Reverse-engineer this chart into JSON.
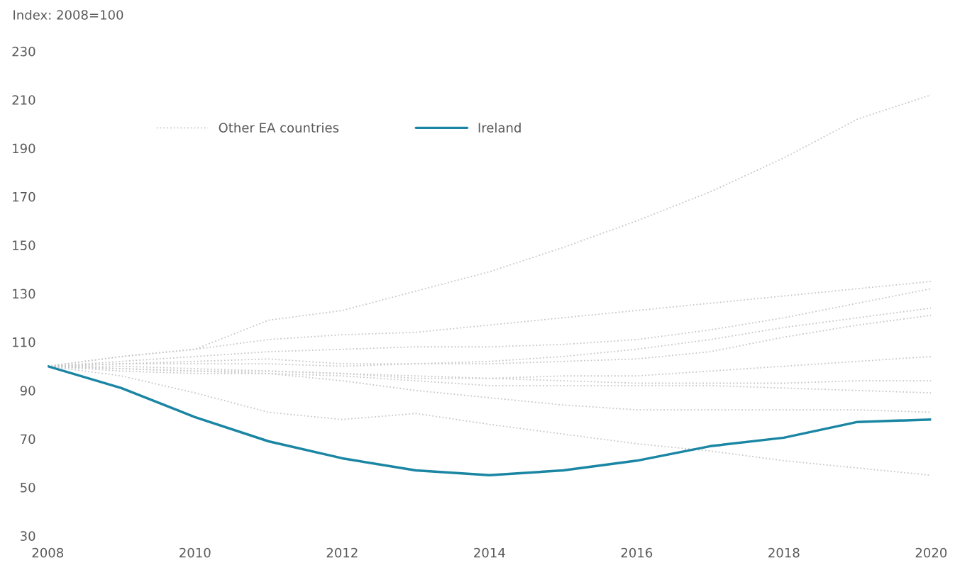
{
  "chart_data": {
    "type": "line",
    "ylabel": "Index: 2008=100",
    "x": [
      2008,
      2009,
      2010,
      2011,
      2012,
      2013,
      2014,
      2015,
      2016,
      2017,
      2018,
      2019,
      2020
    ],
    "series": [
      {
        "name": "Other EA countries",
        "color": "#c8c8c8",
        "line_style": "dotted",
        "values": [
          100,
          104,
          107,
          119,
          123,
          131,
          139,
          149,
          160,
          172,
          186,
          202,
          212
        ]
      },
      {
        "color": "#c8c8c8",
        "line_style": "dotted",
        "values": [
          100,
          104,
          107,
          111,
          113,
          114,
          117,
          120,
          123,
          126,
          129,
          132,
          135
        ]
      },
      {
        "color": "#c8c8c8",
        "line_style": "dotted",
        "values": [
          100,
          102,
          104,
          106,
          107,
          108,
          108,
          109,
          111,
          115,
          120,
          126,
          132
        ]
      },
      {
        "color": "#c8c8c8",
        "line_style": "dotted",
        "values": [
          100,
          101,
          102,
          103,
          101,
          101,
          102,
          104,
          107,
          111,
          116,
          120,
          124
        ]
      },
      {
        "color": "#c8c8c8",
        "line_style": "dotted",
        "values": [
          100,
          101,
          101,
          101,
          100,
          101,
          101,
          102,
          103,
          106,
          112,
          117,
          121
        ]
      },
      {
        "color": "#c8c8c8",
        "line_style": "dotted",
        "values": [
          100,
          99,
          98,
          98,
          97,
          96,
          95,
          96,
          96,
          98,
          100,
          102,
          104
        ]
      },
      {
        "color": "#c8c8c8",
        "line_style": "dotted",
        "values": [
          100,
          100,
          99,
          98,
          97,
          95,
          95,
          94,
          93,
          93,
          93,
          94,
          94
        ]
      },
      {
        "color": "#c8c8c8",
        "line_style": "dotted",
        "values": [
          100,
          99,
          98,
          97,
          96,
          94,
          92,
          92,
          92,
          92,
          91,
          90,
          89
        ]
      },
      {
        "color": "#c8c8c8",
        "line_style": "dotted",
        "values": [
          100,
          98,
          97,
          97,
          94,
          90,
          87,
          84,
          82,
          82,
          82,
          82,
          81
        ]
      },
      {
        "color": "#c8c8c8",
        "line_style": "dotted",
        "values": [
          100,
          96,
          89,
          81,
          78,
          80.5,
          76,
          72,
          68,
          65,
          61,
          58,
          55
        ]
      },
      {
        "name": "Ireland",
        "color": "#1a86a3",
        "line_style": "solid",
        "values": [
          100,
          91,
          79,
          69,
          62,
          57,
          55,
          57,
          61,
          67,
          70.5,
          77,
          78
        ]
      }
    ],
    "xlim": [
      2008,
      2020
    ],
    "xticks": [
      2008,
      2010,
      2012,
      2014,
      2016,
      2018,
      2020
    ],
    "ylim": [
      30,
      230
    ],
    "yticks": [
      30,
      50,
      70,
      90,
      110,
      130,
      150,
      170,
      190,
      210,
      230
    ],
    "grid": false,
    "legend": "top",
    "marker": "none"
  }
}
